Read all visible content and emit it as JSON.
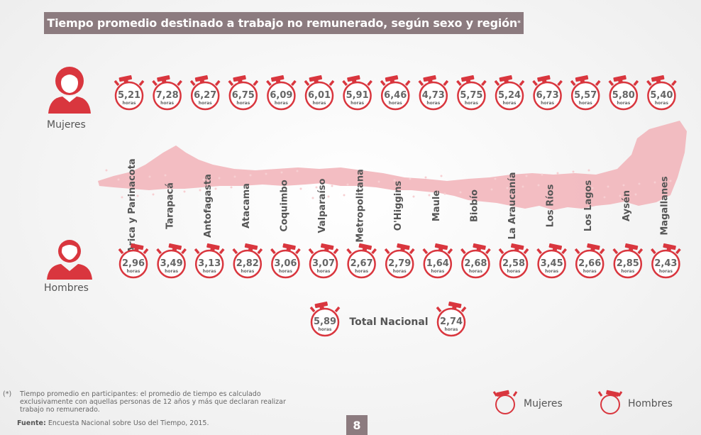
{
  "title": "Tiempo promedio destinado a trabajo no remunerado, según sexo y región",
  "title_mark": "*",
  "labels": {
    "women": "Mujeres",
    "men": "Hombres",
    "total": "Total Nacional",
    "unit": "horas"
  },
  "colors": {
    "accent": "#d9363e",
    "map": "#f2b6bb",
    "title_bg": "#8c7b7f"
  },
  "footnote": {
    "mark": "(*)",
    "text": "Tiempo promedio en participantes: el promedio de tiempo es calculado exclusivamente con aquellas personas de 12 años y más que declaran realizar trabajo no remunerado."
  },
  "source": {
    "label": "Fuente:",
    "text": "Encuesta Nacional sobre Uso del Tiempo, 2015."
  },
  "page_number": "8",
  "legend": {
    "women": "Mujeres",
    "men": "Hombres"
  },
  "chart_data": {
    "type": "table",
    "categories": [
      "Arica y Parinacota",
      "Tarapacá",
      "Antofagasta",
      "Atacama",
      "Coquimbo",
      "Valparaíso",
      "Metropolitana",
      "O'Higgins",
      "Maule",
      "Biobío",
      "La Araucanía",
      "Los Ríos",
      "Los Lagos",
      "Aysén",
      "Magallanes"
    ],
    "series": [
      {
        "name": "Mujeres",
        "values": [
          "5,21",
          "7,28",
          "6,27",
          "6,75",
          "6,09",
          "6,01",
          "5,91",
          "6,46",
          "4,73",
          "5,75",
          "5,24",
          "6,73",
          "5,57",
          "5,80",
          "5,40"
        ]
      },
      {
        "name": "Hombres",
        "values": [
          "2,96",
          "3,49",
          "3,13",
          "2,82",
          "3,06",
          "3,07",
          "2,67",
          "2,79",
          "1,64",
          "2,68",
          "2,58",
          "3,45",
          "2,66",
          "2,85",
          "2,43"
        ]
      }
    ],
    "total": {
      "Mujeres": "5,89",
      "Hombres": "2,74"
    }
  }
}
